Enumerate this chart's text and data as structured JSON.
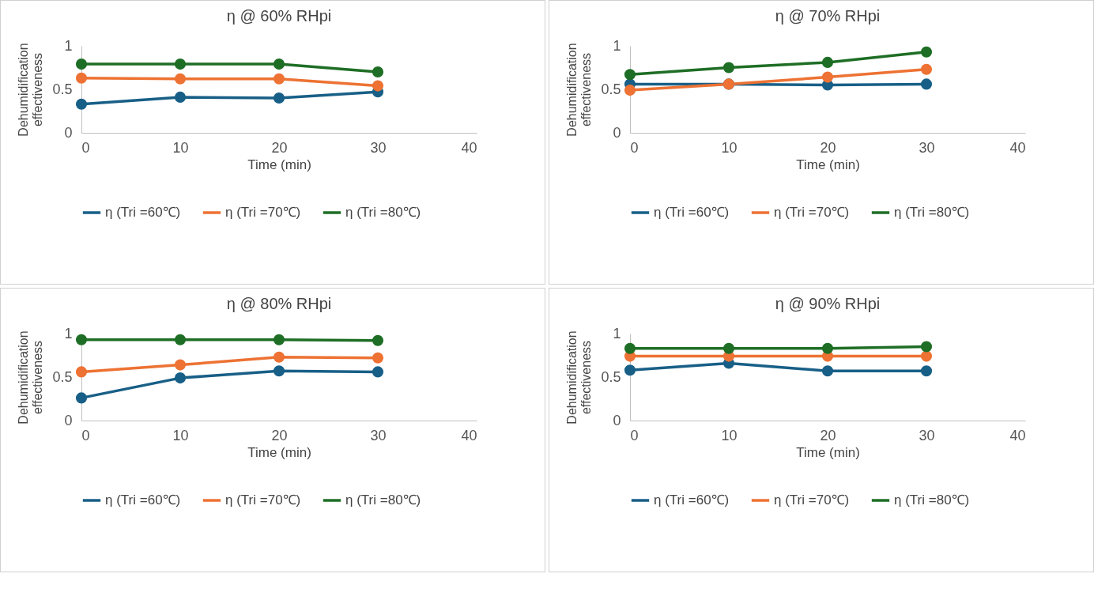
{
  "chart_data": [
    {
      "type": "line",
      "title": "η @ 60% RHpi",
      "xlabel": "Time (min)",
      "ylabel": "Dehumidification effectiveness",
      "x": [
        0,
        10,
        20,
        30
      ],
      "xlim": [
        0,
        40
      ],
      "xticks": [
        0,
        10,
        20,
        30,
        40
      ],
      "ylim": [
        0,
        1
      ],
      "yticks": [
        0,
        0.5,
        1
      ],
      "grid": false,
      "legend": "bottom",
      "marker": "circle",
      "series": [
        {
          "name": "η (Tri =60℃)",
          "color": "#185f87",
          "values": [
            0.33,
            0.41,
            0.4,
            0.47
          ]
        },
        {
          "name": "η (Tri =70℃)",
          "color": "#ed7233",
          "values": [
            0.63,
            0.62,
            0.62,
            0.54
          ]
        },
        {
          "name": "η (Tri =80℃)",
          "color": "#1e6e25",
          "values": [
            0.79,
            0.79,
            0.79,
            0.7
          ]
        }
      ]
    },
    {
      "type": "line",
      "title": "η @ 70% RHpi",
      "xlabel": "Time (min)",
      "ylabel": "Dehumidification effectiveness",
      "x": [
        0,
        10,
        20,
        30
      ],
      "xlim": [
        0,
        40
      ],
      "xticks": [
        0,
        10,
        20,
        30,
        40
      ],
      "ylim": [
        0,
        1
      ],
      "yticks": [
        0,
        0.5,
        1
      ],
      "grid": false,
      "legend": "bottom",
      "marker": "circle",
      "series": [
        {
          "name": "η (Tri =60℃)",
          "color": "#185f87",
          "values": [
            0.56,
            0.56,
            0.55,
            0.56
          ]
        },
        {
          "name": "η (Tri =70℃)",
          "color": "#ed7233",
          "values": [
            0.49,
            0.56,
            0.64,
            0.73
          ]
        },
        {
          "name": "η (Tri =80℃)",
          "color": "#1e6e25",
          "values": [
            0.67,
            0.75,
            0.81,
            0.93
          ]
        }
      ]
    },
    {
      "type": "line",
      "title": "η @ 80% RHpi",
      "xlabel": "Time (min)",
      "ylabel": "Dehumidification effectiveness",
      "x": [
        0,
        10,
        20,
        30
      ],
      "xlim": [
        0,
        40
      ],
      "xticks": [
        0,
        10,
        20,
        30,
        40
      ],
      "ylim": [
        0,
        1
      ],
      "yticks": [
        0,
        0.5,
        1
      ],
      "grid": false,
      "legend": "bottom",
      "marker": "circle",
      "series": [
        {
          "name": "η (Tri =60℃)",
          "color": "#185f87",
          "values": [
            0.26,
            0.49,
            0.57,
            0.56
          ]
        },
        {
          "name": "η (Tri =70℃)",
          "color": "#ed7233",
          "values": [
            0.56,
            0.64,
            0.73,
            0.72
          ]
        },
        {
          "name": "η (Tri =80℃)",
          "color": "#1e6e25",
          "values": [
            0.93,
            0.93,
            0.93,
            0.92
          ]
        }
      ]
    },
    {
      "type": "line",
      "title": "η @ 90% RHpi",
      "xlabel": "Time (min)",
      "ylabel": "Dehumidification effectiveness",
      "x": [
        0,
        10,
        20,
        30
      ],
      "xlim": [
        0,
        40
      ],
      "xticks": [
        0,
        10,
        20,
        30,
        40
      ],
      "ylim": [
        0,
        1
      ],
      "yticks": [
        0,
        0.5,
        1
      ],
      "grid": false,
      "legend": "bottom",
      "marker": "circle",
      "series": [
        {
          "name": "η (Tri =60℃)",
          "color": "#185f87",
          "values": [
            0.58,
            0.66,
            0.57,
            0.57
          ]
        },
        {
          "name": "η (Tri =70℃)",
          "color": "#ed7233",
          "values": [
            0.74,
            0.74,
            0.74,
            0.74
          ]
        },
        {
          "name": "η (Tri =80℃)",
          "color": "#1e6e25",
          "values": [
            0.83,
            0.83,
            0.83,
            0.85
          ]
        }
      ]
    }
  ]
}
